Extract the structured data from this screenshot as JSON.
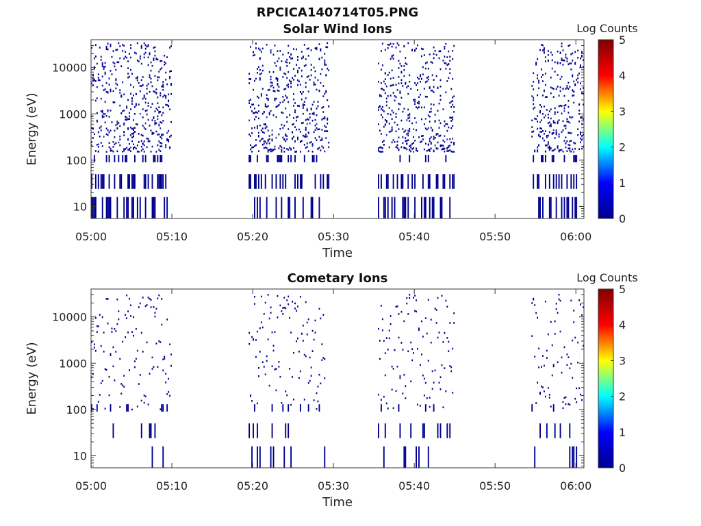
{
  "figure_title": "RPCICA140714T05.PNG",
  "colors": {
    "colormap": [
      "#00008f",
      "#0000ff",
      "#00ffff",
      "#ffff00",
      "#ff0000",
      "#800000"
    ],
    "pixel": "#00008f",
    "pixel_bright": "#1a2fd0"
  },
  "chart_data": [
    {
      "type": "heatmap",
      "title": "Solar Wind Ions",
      "xlabel": "Time",
      "ylabel": "Energy (eV)",
      "x_ticks": [
        "05:00",
        "05:10",
        "05:20",
        "05:30",
        "05:40",
        "05:50",
        "06:00"
      ],
      "x_range": [
        "05:00",
        "06:01"
      ],
      "y_scale": "log",
      "y_ticks": [
        "10",
        "100",
        "1000",
        "10000"
      ],
      "y_range": [
        5.5,
        40000
      ],
      "colorbar": {
        "label": "Log Counts",
        "range": [
          0,
          5
        ],
        "ticks": [
          "0",
          "1",
          "2",
          "3",
          "4",
          "5"
        ]
      },
      "active_intervals": [
        [
          "05:00",
          "05:10"
        ],
        [
          "05:19.5",
          "05:29.5"
        ],
        [
          "05:35.5",
          "05:45"
        ],
        [
          "05:54.5",
          "06:01"
        ]
      ],
      "grid": false
    },
    {
      "type": "heatmap",
      "title": "Cometary Ions",
      "xlabel": "Time",
      "ylabel": "Energy (eV)",
      "x_ticks": [
        "05:00",
        "05:10",
        "05:20",
        "05:30",
        "05:40",
        "05:50",
        "06:00"
      ],
      "x_range": [
        "05:00",
        "06:01"
      ],
      "y_scale": "log",
      "y_ticks": [
        "10",
        "100",
        "1000",
        "10000"
      ],
      "y_range": [
        5.5,
        40000
      ],
      "colorbar": {
        "label": "Log Counts",
        "range": [
          0,
          5
        ],
        "ticks": [
          "0",
          "1",
          "2",
          "3",
          "4",
          "5"
        ]
      },
      "active_intervals": [
        [
          "05:00",
          "05:10"
        ],
        [
          "05:19.5",
          "05:29"
        ],
        [
          "05:35.5",
          "05:45"
        ],
        [
          "05:54.5",
          "06:01"
        ]
      ],
      "grid": false
    }
  ]
}
